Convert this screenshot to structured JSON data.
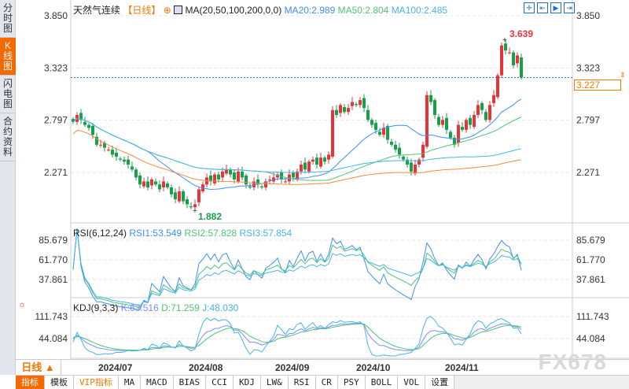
{
  "sidebar": {
    "tabs": [
      "分时图",
      "K线图",
      "闪电图",
      "合约资料"
    ],
    "active": 1
  },
  "header": {
    "symbol": "天然气连续",
    "period": "【日线】",
    "add_icon": "plus-circle-icon",
    "indicator": "MA(20,50,100,200,0,0)",
    "ma20": "MA20:2.989",
    "ma50": "MA50:2.804",
    "ma100": "MA100:2.485"
  },
  "toolbar": {
    "icons": [
      "crosshair-icon",
      "zoom-in-icon",
      "play-icon",
      "exit-icon"
    ]
  },
  "rsi_header": {
    "title": "RSI(6,12,24)",
    "rsi1": "RSI1:53.549",
    "rsi2": "RSI2:57.828",
    "rsi3": "RSI3:57.854"
  },
  "kdj_header": {
    "title": "KDJ(9,3,3)",
    "k": "K:63.516",
    "d": "D:71.259",
    "j": "J:48.030"
  },
  "current_price": "3.227",
  "date_bar": {
    "period": "日线 ▲",
    "dates": [
      "2024/07",
      "2024/08",
      "2024/09",
      "2024/10",
      "2024/11"
    ]
  },
  "bottom_tabs": [
    "指标",
    "模板",
    "VIP指标",
    "MA",
    "MACD",
    "BIAS",
    "CCI",
    "KDJ",
    "LW&",
    "RSI",
    "CR",
    "PSY",
    "BOLL",
    "VOL",
    "设置"
  ],
  "watermark": "FX678",
  "colors": {
    "up": "#e8333a",
    "down": "#16a04a",
    "ma20": "#3d8ff5",
    "ma50": "#4fc37a",
    "ma100": "#46b4ea",
    "ma200": "#f58a3c",
    "accent": "#f56a00"
  },
  "chart_data": {
    "type": "candlestick",
    "title": "天然气连续 【日线】",
    "y_ticks": [
      "3.850",
      "3.323",
      "2.797",
      "2.271"
    ],
    "ylim": [
      1.78,
      4.0
    ],
    "rsi_ticks": [
      "85.679",
      "61.770",
      "37.861"
    ],
    "kdj_ticks": [
      "111.743",
      "44.084"
    ],
    "high_label": "3.639",
    "low_label": "1.882",
    "closes": [
      2.78,
      2.85,
      2.8,
      2.75,
      2.72,
      2.65,
      2.55,
      2.55,
      2.52,
      2.5,
      2.45,
      2.43,
      2.4,
      2.38,
      2.35,
      2.3,
      2.22,
      2.15,
      2.18,
      2.12,
      2.2,
      2.15,
      2.1,
      2.18,
      2.12,
      2.05,
      2.0,
      2.08,
      1.98,
      1.95,
      1.92,
      1.95,
      2.1,
      2.15,
      2.22,
      2.18,
      2.25,
      2.2,
      2.28,
      2.3,
      2.25,
      2.2,
      2.28,
      2.22,
      2.15,
      2.12,
      2.18,
      2.15,
      2.12,
      2.18,
      2.2,
      2.22,
      2.25,
      2.2,
      2.18,
      2.25,
      2.22,
      2.28,
      2.35,
      2.3,
      2.38,
      2.4,
      2.35,
      2.42,
      2.38,
      2.45,
      2.9,
      2.85,
      2.95,
      2.88,
      2.92,
      2.98,
      2.95,
      3.0,
      2.92,
      2.8,
      2.75,
      2.7,
      2.65,
      2.72,
      2.6,
      2.55,
      2.5,
      2.45,
      2.4,
      2.35,
      2.28,
      2.35,
      2.4,
      2.55,
      3.05,
      2.98,
      2.85,
      2.75,
      2.8,
      2.7,
      2.62,
      2.55,
      2.75,
      2.7,
      2.8,
      2.75,
      2.85,
      2.95,
      2.9,
      2.8,
      2.95,
      3.05,
      3.25,
      3.55,
      3.5,
      3.48,
      3.35,
      3.45,
      3.227
    ]
  }
}
